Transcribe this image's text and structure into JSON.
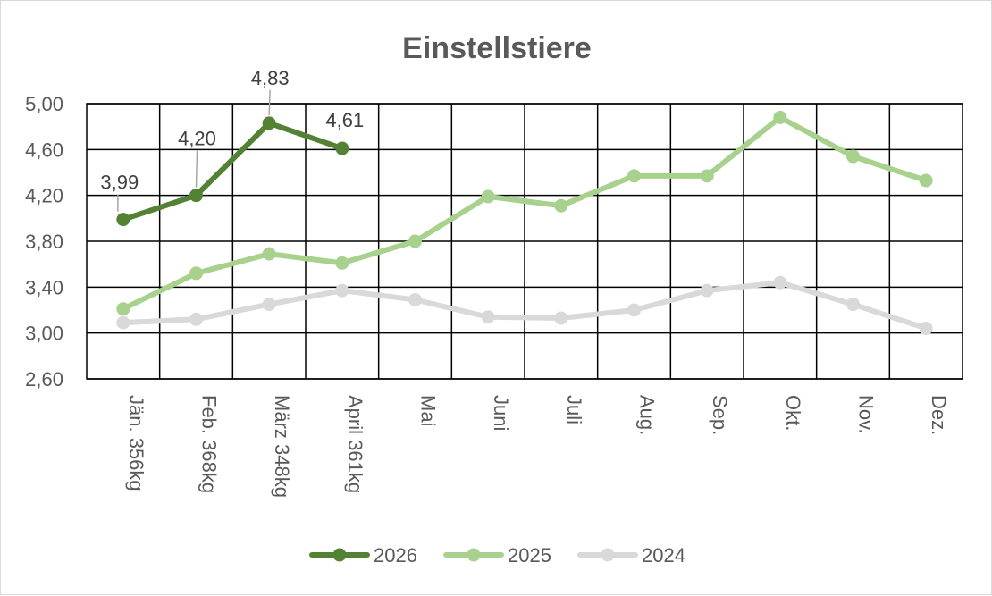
{
  "chart_data": {
    "type": "line",
    "title": "Einstellstiere",
    "xlabel": "",
    "ylabel": "",
    "categories": [
      "Jän.  356kg",
      "Feb.  368kg",
      "März 348kg",
      "April  361kg",
      "Mai",
      "Juni",
      "Juli",
      "Aug.",
      "Sep.",
      "Okt.",
      "Nov.",
      "Dez."
    ],
    "y_ticks": [
      "2,60",
      "3,00",
      "3,40",
      "3,80",
      "4,20",
      "4,60",
      "5,00"
    ],
    "ylim": [
      2.6,
      5.0
    ],
    "grid": true,
    "legend_position": "bottom",
    "series": [
      {
        "name": "2026",
        "color": "#548235",
        "values": [
          3.99,
          4.2,
          4.83,
          4.61,
          null,
          null,
          null,
          null,
          null,
          null,
          null,
          null
        ],
        "labels": [
          "3,99",
          "4,20",
          "4,83",
          "4,61",
          "",
          "",
          "",
          "",
          "",
          "",
          "",
          ""
        ]
      },
      {
        "name": "2025",
        "color": "#a9d18e",
        "values": [
          3.21,
          3.52,
          3.69,
          3.61,
          3.8,
          4.19,
          4.11,
          4.37,
          4.37,
          4.88,
          4.54,
          4.33
        ]
      },
      {
        "name": "2024",
        "color": "#d9d9d9",
        "values": [
          3.09,
          3.12,
          3.25,
          3.37,
          3.29,
          3.14,
          3.13,
          3.2,
          3.37,
          3.44,
          3.25,
          3.04
        ]
      }
    ]
  }
}
